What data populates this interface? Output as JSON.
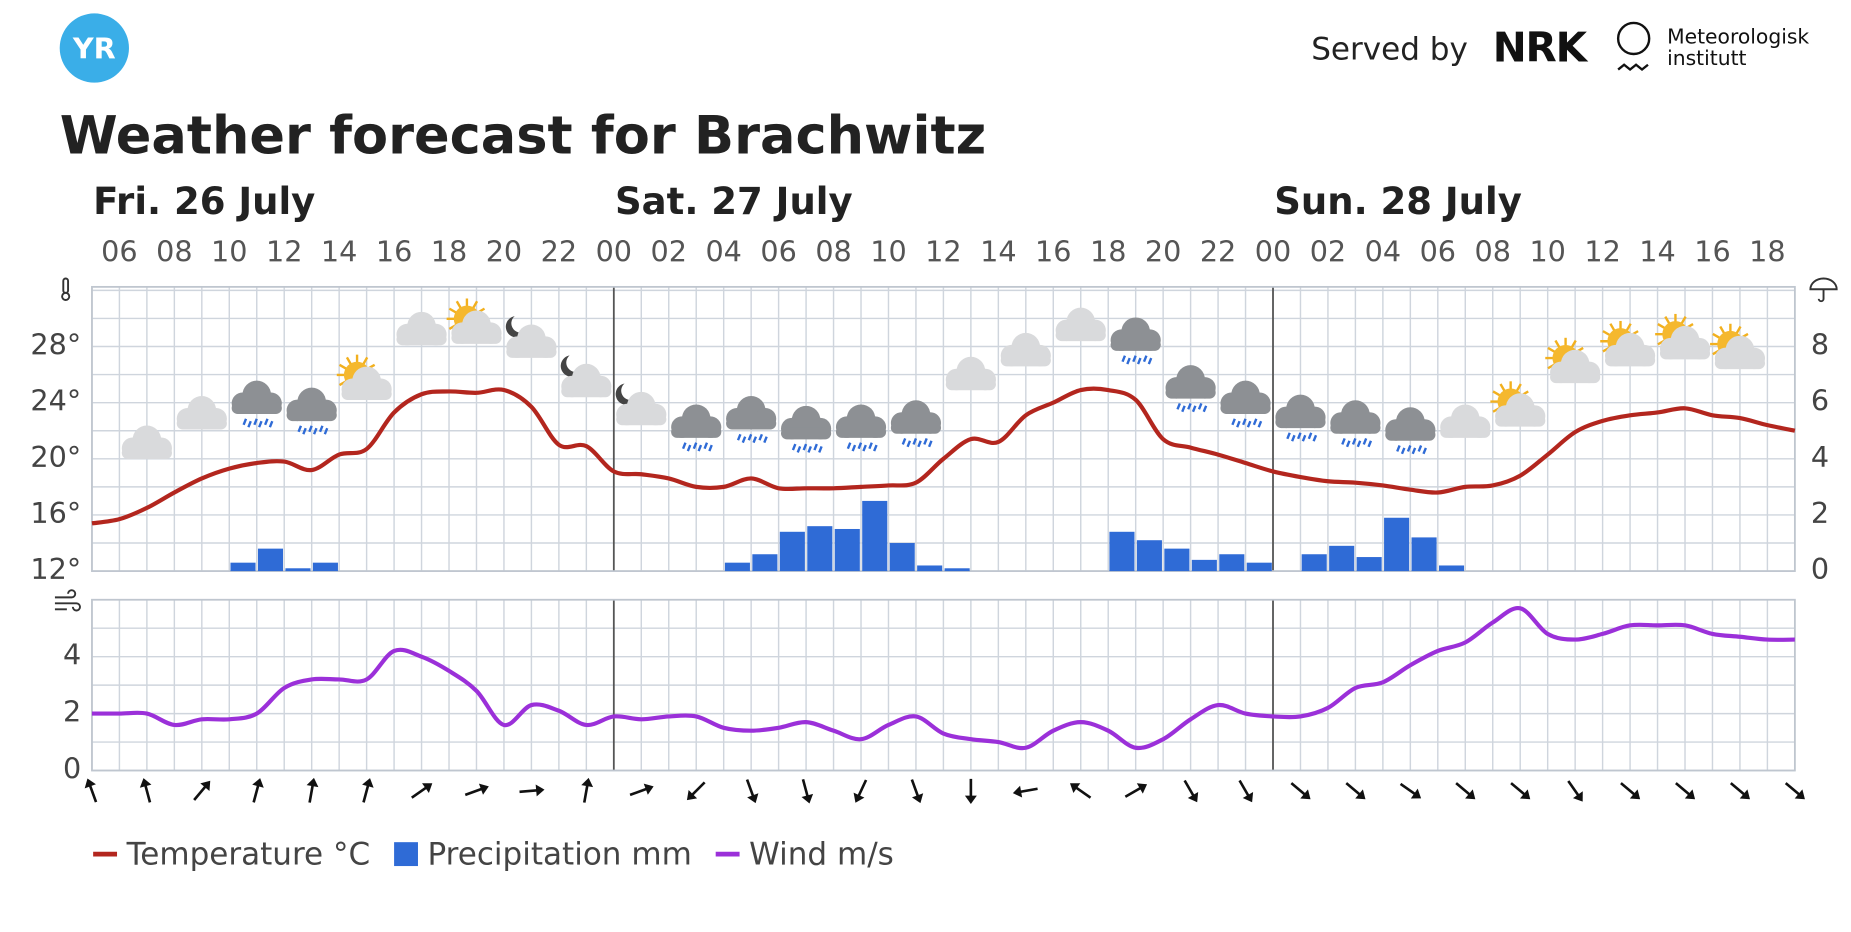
{
  "header": {
    "logo": "YR",
    "served_by": "Served by",
    "nrk": "NRK",
    "met": [
      "Meteorologisk",
      "institutt"
    ]
  },
  "chart_data": [
    {
      "type": "combo",
      "title": "Weather forecast for Brachwitz",
      "days": [
        "Fri. 26 July",
        "Sat. 27 July",
        "Sun. 28 July"
      ],
      "categories": [
        null,
        "06",
        null,
        "08",
        null,
        "10",
        null,
        "12",
        null,
        "14",
        null,
        "16",
        null,
        "18",
        null,
        "20",
        null,
        "22",
        null,
        "00",
        null,
        "02",
        null,
        "04",
        null,
        "06",
        null,
        "08",
        null,
        "10",
        null,
        "12",
        null,
        "14",
        null,
        "16",
        null,
        "18",
        null,
        "20",
        null,
        "22",
        null,
        "00",
        null,
        "02",
        null,
        "04",
        null,
        "06",
        null,
        "08",
        null,
        "10",
        null,
        "12",
        null,
        "14",
        null,
        "16",
        null,
        "18",
        null
      ],
      "series": [
        {
          "name": "Temperature °C",
          "type": "line",
          "color": "#b3261e",
          "values": [
            15.4,
            15.7,
            16.5,
            17.6,
            18.6,
            19.3,
            19.7,
            19.8,
            19.2,
            20.3,
            20.7,
            23.3,
            24.6,
            24.8,
            24.7,
            24.9,
            23.7,
            21.0,
            20.9,
            19.1,
            18.9,
            18.6,
            18.0,
            18.0,
            18.6,
            17.9,
            17.9,
            17.9,
            18.0,
            18.1,
            18.3,
            20.0,
            21.4,
            21.2,
            23.1,
            24.0,
            24.9,
            24.9,
            24.2,
            21.4,
            20.8,
            20.3,
            19.7,
            19.1,
            18.7,
            18.4,
            18.3,
            18.1,
            17.8,
            17.6,
            18.0,
            18.1,
            18.8,
            20.3,
            21.9,
            22.7,
            23.1,
            23.3,
            23.6,
            23.1,
            22.9,
            22.4,
            22.0
          ]
        },
        {
          "name": "Precipitation mm",
          "type": "bar",
          "axis": "y2",
          "color": "#2f6bd6",
          "values": [
            0,
            0,
            0,
            0,
            0,
            0.3,
            0.8,
            0.1,
            0.3,
            0,
            0,
            0,
            0,
            0,
            0,
            0,
            0,
            0,
            0,
            0,
            0,
            0,
            0,
            0.3,
            0.6,
            1.4,
            1.6,
            1.5,
            2.5,
            1.0,
            0.2,
            0.1,
            0,
            0,
            0,
            0,
            0,
            1.4,
            1.1,
            0.8,
            0.4,
            0.6,
            0.3,
            0,
            0.6,
            0.9,
            0.5,
            1.9,
            1.2,
            0.2,
            0,
            0,
            0,
            0,
            0,
            0,
            0,
            0,
            0,
            0,
            0,
            0,
            0
          ]
        }
      ],
      "ylim": [
        12,
        32.25
      ],
      "yticks": [
        {
          "value": 12,
          "label": "12°"
        },
        {
          "value": 16,
          "label": "16°"
        },
        {
          "value": 20,
          "label": "20°"
        },
        {
          "value": 24,
          "label": "24°"
        },
        {
          "value": 28,
          "label": "28°"
        }
      ],
      "ygrid": [
        12,
        14,
        16,
        18,
        20,
        22,
        24,
        26,
        28,
        30,
        32
      ],
      "y2lim": [
        0,
        10.125
      ],
      "y2ticks": [
        0,
        2,
        4,
        6,
        8
      ]
    },
    {
      "type": "line",
      "series": [
        {
          "name": "Wind m/s",
          "color": "#9b30d9",
          "values": [
            2.0,
            2.0,
            2.0,
            1.6,
            1.8,
            1.8,
            2.0,
            2.9,
            3.2,
            3.2,
            3.2,
            4.2,
            4.0,
            3.5,
            2.8,
            1.6,
            2.3,
            2.1,
            1.6,
            1.9,
            1.8,
            1.9,
            1.9,
            1.5,
            1.4,
            1.5,
            1.7,
            1.4,
            1.1,
            1.6,
            1.9,
            1.3,
            1.1,
            1.0,
            0.8,
            1.4,
            1.7,
            1.4,
            0.8,
            1.1,
            1.8,
            2.3,
            2.0,
            1.9,
            1.9,
            2.2,
            2.9,
            3.1,
            3.7,
            4.2,
            4.5,
            5.2,
            5.7,
            4.8,
            4.6,
            4.8,
            5.1,
            5.1,
            5.1,
            4.8,
            4.7,
            4.6,
            4.6
          ]
        }
      ],
      "wind_direction": [
        340,
        null,
        345,
        null,
        40,
        null,
        15,
        null,
        10,
        null,
        15,
        null,
        55,
        null,
        70,
        null,
        85,
        null,
        10,
        null,
        70,
        null,
        225,
        null,
        160,
        null,
        165,
        null,
        205,
        null,
        160,
        null,
        180,
        null,
        260,
        null,
        305,
        null,
        60,
        null,
        150,
        null,
        150,
        null,
        130,
        null,
        130,
        null,
        125,
        null,
        130,
        null,
        130,
        null,
        145,
        null,
        130,
        null,
        130,
        null,
        130,
        null,
        130
      ],
      "ylim": [
        0,
        6
      ],
      "yticks": [
        0,
        2,
        4
      ],
      "ygrid": [
        0,
        1,
        2,
        3,
        4,
        5,
        6
      ]
    }
  ]
}
